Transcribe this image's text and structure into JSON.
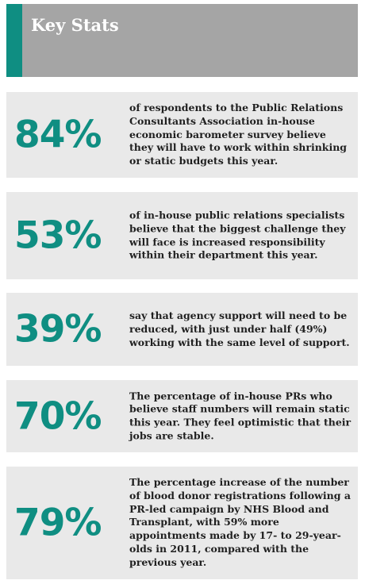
{
  "header": {
    "title": "Key Stats"
  },
  "colors": {
    "accent": "#0f8e82",
    "header_bg": "#a5a5a5",
    "panel_bg": "#e9e9e9",
    "text": "#1f1f1f"
  },
  "stats": [
    {
      "value": "84%",
      "text": "of respondents to the Public Relations Consultants Association in-house economic barometer survey believe they will have to work within shrinking or static budgets this year."
    },
    {
      "value": "53%",
      "text": "of in-house public relations specialists believe that the biggest challenge they will face is increased responsibility within their department this year."
    },
    {
      "value": "39%",
      "text": "say that agency support will need to be reduced, with just under half (49%) working with the same level of support."
    },
    {
      "value": "70%",
      "text": "The percentage of in-house PRs who believe staff numbers will remain static this year. They feel optimistic that their jobs are stable."
    },
    {
      "value": "79%",
      "text": "The percentage increase of the number of blood donor registrations following a PR-led campaign by NHS Blood and Transplant, with 59% more appointments made by 17- to 29-year-olds in 2011, compared with the previous year."
    }
  ]
}
